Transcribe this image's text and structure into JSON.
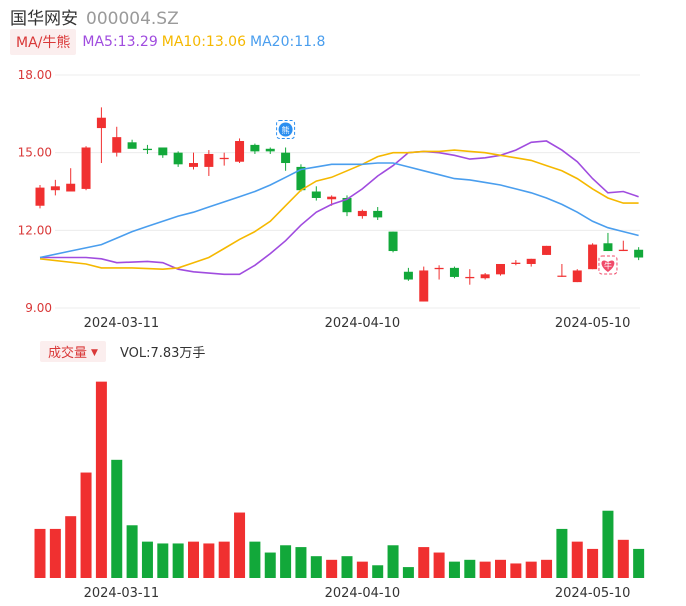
{
  "header": {
    "name": "国华网安",
    "code": "000004.SZ"
  },
  "ma_legend": {
    "selector": "MA/牛熊",
    "items": [
      {
        "text": "MA5:13.29",
        "color": "#a04cdf"
      },
      {
        "text": "MA10:13.06",
        "color": "#f5b800"
      },
      {
        "text": "MA20:11.8",
        "color": "#4a9eee"
      }
    ]
  },
  "volume_legend": {
    "selector": "成交量",
    "text": "VOL:7.83万手"
  },
  "colors": {
    "up": "#f03030",
    "down": "#12a83a",
    "axis_text": "#d93838"
  },
  "markers": [
    {
      "text": "熊",
      "icon": "bear-badge-icon",
      "color": "#2b8ff0",
      "candle_index": 16
    },
    {
      "text": "牛",
      "icon": "bull-heart-icon",
      "color": "#f04a6a",
      "candle_index": 37
    }
  ],
  "chart_data": [
    {
      "type": "candlestick",
      "y_ticks": [
        "18.00",
        "15.00",
        "12.00",
        "9.00"
      ],
      "ylim": [
        9.0,
        18.0
      ],
      "x_ticks": [
        {
          "label": "2024-03-11",
          "index": 4
        },
        {
          "label": "2024-04-10",
          "index": 21
        },
        {
          "label": "2024-05-10",
          "index": 36
        }
      ],
      "grid": true,
      "candles": [
        {
          "o": 12.95,
          "h": 13.75,
          "l": 12.85,
          "c": 13.65
        },
        {
          "o": 13.55,
          "h": 13.95,
          "l": 13.35,
          "c": 13.7
        },
        {
          "o": 13.5,
          "h": 14.4,
          "l": 13.5,
          "c": 13.8
        },
        {
          "o": 13.6,
          "h": 15.25,
          "l": 13.55,
          "c": 15.2
        },
        {
          "o": 15.95,
          "h": 16.75,
          "l": 14.6,
          "c": 16.35
        },
        {
          "o": 15.0,
          "h": 16.0,
          "l": 14.85,
          "c": 15.6
        },
        {
          "o": 15.4,
          "h": 15.5,
          "l": 15.2,
          "c": 15.15
        },
        {
          "o": 15.15,
          "h": 15.3,
          "l": 14.95,
          "c": 15.1
        },
        {
          "o": 15.2,
          "h": 15.2,
          "l": 14.8,
          "c": 14.9
        },
        {
          "o": 15.0,
          "h": 15.05,
          "l": 14.45,
          "c": 14.55
        },
        {
          "o": 14.45,
          "h": 15.0,
          "l": 14.35,
          "c": 14.6
        },
        {
          "o": 14.45,
          "h": 15.1,
          "l": 14.1,
          "c": 14.95
        },
        {
          "o": 14.75,
          "h": 15.0,
          "l": 14.5,
          "c": 14.8
        },
        {
          "o": 14.65,
          "h": 15.55,
          "l": 14.6,
          "c": 15.45
        },
        {
          "o": 15.3,
          "h": 15.35,
          "l": 14.95,
          "c": 15.05
        },
        {
          "o": 15.15,
          "h": 15.2,
          "l": 14.95,
          "c": 15.05
        },
        {
          "o": 15.0,
          "h": 15.2,
          "l": 14.3,
          "c": 14.6
        },
        {
          "o": 14.45,
          "h": 14.55,
          "l": 13.5,
          "c": 13.55
        },
        {
          "o": 13.5,
          "h": 13.7,
          "l": 13.15,
          "c": 13.25
        },
        {
          "o": 13.2,
          "h": 13.35,
          "l": 12.95,
          "c": 13.3
        },
        {
          "o": 13.25,
          "h": 13.35,
          "l": 12.55,
          "c": 12.7
        },
        {
          "o": 12.55,
          "h": 12.8,
          "l": 12.45,
          "c": 12.75
        },
        {
          "o": 12.75,
          "h": 12.9,
          "l": 12.4,
          "c": 12.5
        },
        {
          "o": 11.95,
          "h": 11.95,
          "l": 11.15,
          "c": 11.2
        },
        {
          "o": 10.4,
          "h": 10.55,
          "l": 10.05,
          "c": 10.1
        },
        {
          "o": 9.25,
          "h": 10.6,
          "l": 9.25,
          "c": 10.45
        },
        {
          "o": 10.5,
          "h": 10.65,
          "l": 10.1,
          "c": 10.55
        },
        {
          "o": 10.55,
          "h": 10.6,
          "l": 10.15,
          "c": 10.2
        },
        {
          "o": 10.15,
          "h": 10.5,
          "l": 9.9,
          "c": 10.2
        },
        {
          "o": 10.15,
          "h": 10.35,
          "l": 10.1,
          "c": 10.3
        },
        {
          "o": 10.3,
          "h": 10.7,
          "l": 10.25,
          "c": 10.7
        },
        {
          "o": 10.7,
          "h": 10.85,
          "l": 10.65,
          "c": 10.75
        },
        {
          "o": 10.7,
          "h": 10.9,
          "l": 10.6,
          "c": 10.9
        },
        {
          "o": 11.05,
          "h": 11.4,
          "l": 11.05,
          "c": 11.4
        },
        {
          "o": 10.25,
          "h": 10.7,
          "l": 10.2,
          "c": 10.25
        },
        {
          "o": 10.0,
          "h": 10.5,
          "l": 10.0,
          "c": 10.45
        },
        {
          "o": 10.5,
          "h": 11.5,
          "l": 10.5,
          "c": 11.45
        },
        {
          "o": 11.5,
          "h": 11.9,
          "l": 11.2,
          "c": 11.2
        },
        {
          "o": 11.2,
          "h": 11.6,
          "l": 11.2,
          "c": 11.25
        },
        {
          "o": 11.25,
          "h": 11.35,
          "l": 10.85,
          "c": 10.95
        }
      ],
      "ma_series": [
        {
          "name": "MA5",
          "color": "#a04cdf",
          "points": [
            [
              0,
              10.95
            ],
            [
              3,
              10.95
            ],
            [
              4,
              10.9
            ],
            [
              5,
              10.75
            ],
            [
              7,
              10.8
            ],
            [
              8,
              10.75
            ],
            [
              9,
              10.5
            ],
            [
              10,
              10.4
            ],
            [
              12,
              10.3
            ],
            [
              13,
              10.3
            ],
            [
              14,
              10.65
            ],
            [
              15,
              11.1
            ],
            [
              16,
              11.6
            ],
            [
              17,
              12.2
            ],
            [
              18,
              12.7
            ],
            [
              19,
              13.0
            ],
            [
              20,
              13.2
            ],
            [
              21,
              13.6
            ],
            [
              22,
              14.1
            ],
            [
              23,
              14.5
            ],
            [
              24,
              15.0
            ],
            [
              25,
              15.05
            ],
            [
              26,
              15.0
            ],
            [
              27,
              14.9
            ],
            [
              28,
              14.75
            ],
            [
              29,
              14.8
            ],
            [
              30,
              14.9
            ],
            [
              31,
              15.1
            ],
            [
              32,
              15.4
            ],
            [
              33,
              15.45
            ],
            [
              34,
              15.1
            ],
            [
              35,
              14.65
            ],
            [
              36,
              14.0
            ],
            [
              37,
              13.45
            ],
            [
              38,
              13.5
            ],
            [
              39,
              13.3
            ]
          ]
        },
        {
          "name": "MA10",
          "color": "#f5b800",
          "points": [
            [
              0,
              10.9
            ],
            [
              3,
              10.7
            ],
            [
              4,
              10.55
            ],
            [
              6,
              10.55
            ],
            [
              8,
              10.5
            ],
            [
              9,
              10.55
            ],
            [
              10,
              10.75
            ],
            [
              11,
              10.95
            ],
            [
              12,
              11.3
            ],
            [
              13,
              11.65
            ],
            [
              14,
              11.95
            ],
            [
              15,
              12.35
            ],
            [
              16,
              12.95
            ],
            [
              17,
              13.55
            ],
            [
              18,
              13.9
            ],
            [
              19,
              14.05
            ],
            [
              20,
              14.3
            ],
            [
              21,
              14.55
            ],
            [
              22,
              14.85
            ],
            [
              23,
              15.0
            ],
            [
              24,
              15.0
            ],
            [
              25,
              15.05
            ],
            [
              26,
              15.05
            ],
            [
              27,
              15.1
            ],
            [
              28,
              15.05
            ],
            [
              29,
              15.0
            ],
            [
              30,
              14.9
            ],
            [
              31,
              14.8
            ],
            [
              32,
              14.7
            ],
            [
              33,
              14.5
            ],
            [
              34,
              14.3
            ],
            [
              35,
              14.0
            ],
            [
              36,
              13.6
            ],
            [
              37,
              13.25
            ],
            [
              38,
              13.05
            ],
            [
              39,
              13.05
            ]
          ]
        },
        {
          "name": "MA20",
          "color": "#4a9eee",
          "points": [
            [
              0,
              10.95
            ],
            [
              2,
              11.2
            ],
            [
              4,
              11.45
            ],
            [
              5,
              11.7
            ],
            [
              6,
              11.95
            ],
            [
              7,
              12.15
            ],
            [
              8,
              12.35
            ],
            [
              9,
              12.55
            ],
            [
              10,
              12.7
            ],
            [
              11,
              12.9
            ],
            [
              12,
              13.1
            ],
            [
              13,
              13.3
            ],
            [
              14,
              13.5
            ],
            [
              15,
              13.75
            ],
            [
              16,
              14.05
            ],
            [
              17,
              14.35
            ],
            [
              18,
              14.45
            ],
            [
              19,
              14.55
            ],
            [
              20,
              14.55
            ],
            [
              21,
              14.55
            ],
            [
              22,
              14.6
            ],
            [
              23,
              14.6
            ],
            [
              24,
              14.45
            ],
            [
              25,
              14.3
            ],
            [
              26,
              14.15
            ],
            [
              27,
              14.0
            ],
            [
              28,
              13.95
            ],
            [
              29,
              13.85
            ],
            [
              30,
              13.75
            ],
            [
              31,
              13.6
            ],
            [
              32,
              13.45
            ],
            [
              33,
              13.25
            ],
            [
              34,
              13.0
            ],
            [
              35,
              12.7
            ],
            [
              36,
              12.35
            ],
            [
              37,
              12.1
            ],
            [
              38,
              11.95
            ],
            [
              39,
              11.8
            ]
          ]
        }
      ]
    },
    {
      "type": "bar",
      "series_name": "VOL",
      "values": [
        27,
        27,
        34,
        58,
        108,
        65,
        29,
        20,
        19,
        19,
        20,
        19,
        20,
        36,
        20,
        14,
        18,
        17,
        12,
        10,
        12,
        9,
        7,
        18,
        6,
        17,
        14,
        9,
        10,
        9,
        10,
        8,
        9,
        10,
        27,
        20,
        16,
        37,
        21,
        16
      ],
      "directions": [
        "up",
        "up",
        "up",
        "up",
        "up",
        "down",
        "down",
        "down",
        "down",
        "down",
        "up",
        "up",
        "up",
        "up",
        "down",
        "down",
        "down",
        "down",
        "down",
        "up",
        "down",
        "up",
        "down",
        "down",
        "down",
        "up",
        "up",
        "down",
        "down",
        "up",
        "up",
        "up",
        "up",
        "up",
        "down",
        "up",
        "up",
        "down",
        "up",
        "down"
      ],
      "ylim": [
        0,
        110
      ],
      "x_ticks": [
        {
          "label": "2024-03-11",
          "index": 4
        },
        {
          "label": "2024-04-10",
          "index": 21
        },
        {
          "label": "2024-05-10",
          "index": 36
        }
      ]
    }
  ]
}
